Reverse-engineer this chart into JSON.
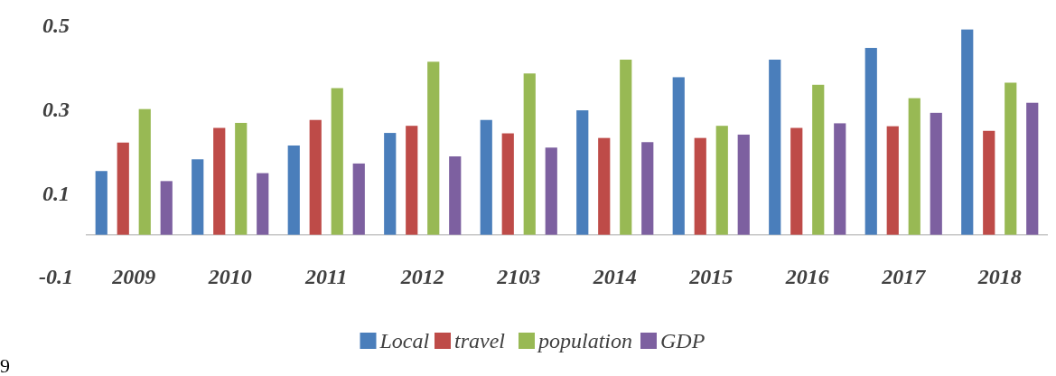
{
  "chart_data": {
    "type": "bar",
    "categories": [
      "2009",
      "2010",
      "2011",
      "2012",
      "2103",
      "2014",
      "2015",
      "2016",
      "2017",
      "2018"
    ],
    "series": [
      {
        "name": "Local",
        "color": "#4a7ebb",
        "values": [
          0.152,
          0.18,
          0.213,
          0.243,
          0.274,
          0.297,
          0.376,
          0.418,
          0.446,
          0.49
        ]
      },
      {
        "name": "travel",
        "color": "#be4b48",
        "values": [
          0.22,
          0.255,
          0.274,
          0.26,
          0.242,
          0.231,
          0.231,
          0.255,
          0.259,
          0.248
        ]
      },
      {
        "name": "population",
        "color": "#98b954",
        "values": [
          0.3,
          0.267,
          0.35,
          0.413,
          0.385,
          0.418,
          0.26,
          0.358,
          0.326,
          0.363
        ]
      },
      {
        "name": "GDP",
        "color": "#7d60a0",
        "values": [
          0.128,
          0.147,
          0.17,
          0.187,
          0.208,
          0.221,
          0.239,
          0.266,
          0.291,
          0.315
        ]
      }
    ],
    "ylim": [
      -0.1,
      0.5
    ],
    "yticks": [
      -0.1,
      0.1,
      0.3,
      0.5
    ],
    "grid": false,
    "legend": "bottom",
    "annotations": [
      "9"
    ]
  }
}
